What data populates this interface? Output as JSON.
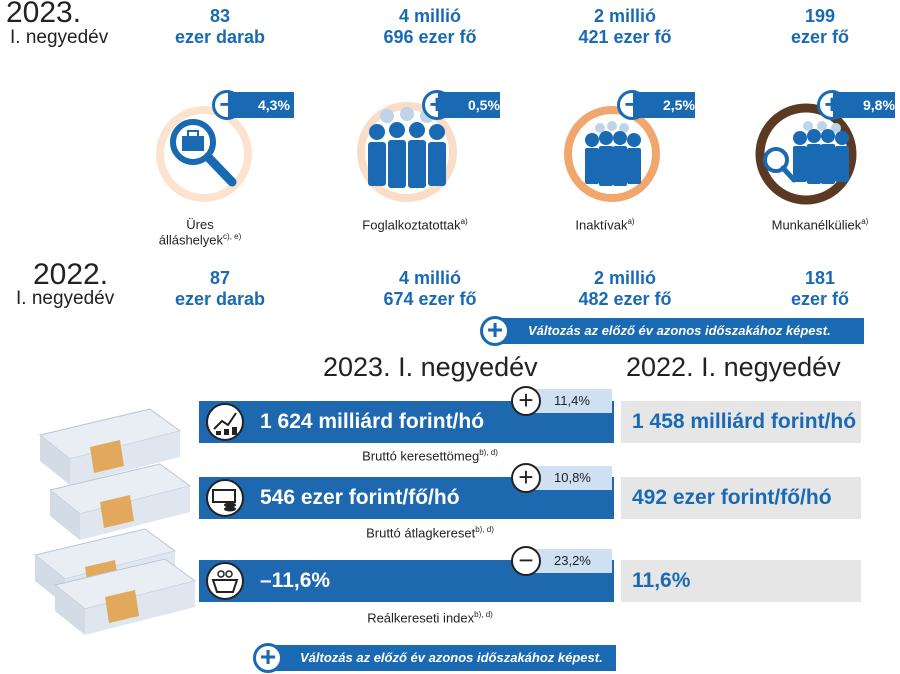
{
  "period_current": {
    "year": "2023.",
    "quarter": "I. negyedév"
  },
  "period_previous": {
    "year": "2022.",
    "quarter": "I. negyedév"
  },
  "labor_current": [
    {
      "line1": "83",
      "line2": "ezer darab"
    },
    {
      "line1": "4 millió",
      "line2": "696 ezer fő"
    },
    {
      "line1": "2 millió",
      "line2": "421 ezer fő"
    },
    {
      "line1": "199",
      "line2": "ezer fő"
    }
  ],
  "labor_previous": [
    {
      "line1": "87",
      "line2": "ezer darab"
    },
    {
      "line1": "4  millió",
      "line2": "674 ezer fő"
    },
    {
      "line1": "2 millió",
      "line2": "482 ezer fő"
    },
    {
      "line1": "181",
      "line2": "ezer fő"
    }
  ],
  "indicators": [
    {
      "sign": "−",
      "change": "4,3%",
      "label_a": "Üres",
      "label_b": "álláshelyek",
      "note": "c), e)",
      "ring_color": "#fbe3d0",
      "icon": "briefcase-magnifier-icon"
    },
    {
      "sign": "+",
      "change": "0,5%",
      "label_a": "",
      "label_b": "Foglalkoztatottak",
      "note": "a)",
      "ring_color": "#f9ddc8",
      "icon": "employees-group-icon"
    },
    {
      "sign": "−",
      "change": "2,5%",
      "label_a": "",
      "label_b": "Inaktívak",
      "note": "a)",
      "ring_color": "#f0a66c",
      "icon": "inactive-people-icon"
    },
    {
      "sign": "+",
      "change": "9,8%",
      "label_a": "",
      "label_b": "Munkanélküliek",
      "note": "a)",
      "ring_color": "#5b3a24",
      "icon": "unemployed-search-icon"
    }
  ],
  "legend_top": {
    "sign": "+",
    "text": "Változás az előző év azonos időszakához képest."
  },
  "wage_headers": {
    "current": "2023. I. negyedév",
    "previous": "2022. I. negyedév"
  },
  "wages": [
    {
      "current": "1 624 milliárd forint/hó",
      "previous": "1 458 milliárd forint/hó",
      "sign": "+",
      "change": "11,4%",
      "label": "Bruttó keresettömeg",
      "note": "b), d)",
      "icon": "growth-coins-icon"
    },
    {
      "current": "546 ezer forint/fő/hó",
      "previous": "492 ezer forint/fő/hó",
      "sign": "+",
      "change": "10,8%",
      "label": "Bruttó átlagkereset",
      "note": "b), d)",
      "icon": "money-coins-icon"
    },
    {
      "current": "–11,6%",
      "previous": "11,6%",
      "sign": "−",
      "change": "23,2%",
      "label": "Reálkereseti index",
      "note": "b), d)",
      "icon": "shopping-basket-icon"
    }
  ],
  "legend_bottom": {
    "sign": "+",
    "text": "Változás az előző év azonos időszakához képest."
  },
  "colors": {
    "accent": "#1a6ab3",
    "bar_previous": "#e6e6e6",
    "change_box": "#cfe0f3"
  }
}
